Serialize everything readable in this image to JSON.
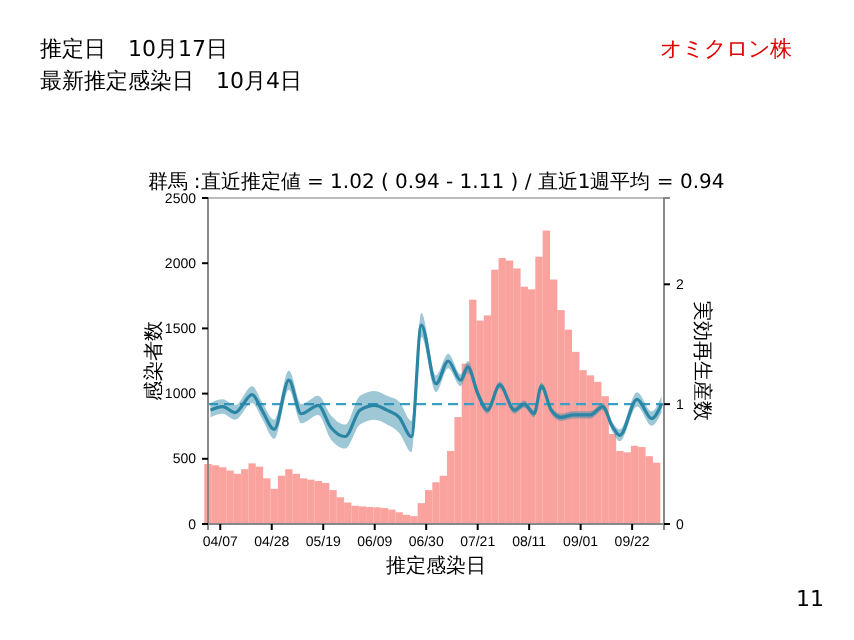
{
  "chart_data": {
    "type": "bar",
    "title": "群馬 :直近推定値 = 1.02 ( 0.94 - 1.11 ) / 直近1週平均 = 0.94",
    "xlabel": "推定感染日",
    "ylabel": "感染者数",
    "y2label": "実効再生産数",
    "annotations": [
      "推定日　10月17日",
      "最新推定感染日　10月4日",
      "オミクロン株",
      "11"
    ],
    "xlim": [
      "--04-02",
      "--10-05"
    ],
    "xticks": [
      {
        "value": "--04-07",
        "label": "04/07"
      },
      {
        "value": "--04-28",
        "label": "04/28"
      },
      {
        "value": "--05-19",
        "label": "05/19"
      },
      {
        "value": "--06-09",
        "label": "06/09"
      },
      {
        "value": "--06-30",
        "label": "06/30"
      },
      {
        "value": "--07-21",
        "label": "07/21"
      },
      {
        "value": "--08-11",
        "label": "08/11"
      },
      {
        "value": "--09-01",
        "label": "09/01"
      },
      {
        "value": "--09-22",
        "label": "09/22"
      }
    ],
    "ylim": [
      0,
      2500
    ],
    "yticks": [
      0,
      500,
      1000,
      1500,
      2000,
      2500
    ],
    "y2lim": [
      0,
      2.72
    ],
    "y2ticks": [
      0,
      1,
      2
    ],
    "series": [
      {
        "color": "#f9938d",
        "x": [
          "--04-02",
          "--04-05",
          "--04-08",
          "--04-11",
          "--04-14",
          "--04-17",
          "--04-20",
          "--04-23",
          "--04-26",
          "--04-29",
          "--05-02",
          "--05-05",
          "--05-08",
          "--05-11",
          "--05-14",
          "--05-17",
          "--05-20",
          "--05-23",
          "--05-26",
          "--05-29",
          "--06-01",
          "--06-04",
          "--06-07",
          "--06-10",
          "--06-13",
          "--06-16",
          "--06-19",
          "--06-22",
          "--06-25",
          "--06-28",
          "--07-01",
          "--07-04",
          "--07-07",
          "--07-10",
          "--07-13",
          "--07-16",
          "--07-19",
          "--07-22",
          "--07-25",
          "--07-28",
          "--07-31",
          "--08-03",
          "--08-06",
          "--08-09",
          "--08-12",
          "--08-15",
          "--08-18",
          "--08-21",
          "--08-24",
          "--08-27",
          "--08-30",
          "--09-02",
          "--09-05",
          "--09-08",
          "--09-11",
          "--09-14",
          "--09-17",
          "--09-20",
          "--09-23",
          "--09-26",
          "--09-29",
          "--10-02"
        ],
        "values": [
          460,
          450,
          435,
          410,
          385,
          420,
          465,
          440,
          350,
          270,
          370,
          420,
          385,
          350,
          340,
          330,
          315,
          260,
          205,
          165,
          140,
          135,
          130,
          128,
          122,
          110,
          90,
          70,
          60,
          160,
          260,
          320,
          370,
          560,
          820,
          1230,
          1720,
          1560,
          1600,
          1950,
          2040,
          2020,
          1960,
          1820,
          1800,
          2050,
          2250,
          1875,
          1640,
          1490,
          1320,
          1180,
          1140,
          1090,
          980,
          690,
          560,
          550,
          600,
          590,
          520,
          470
        ]
      },
      {
        "type": "line",
        "axis": "y2",
        "color": "#2b86a6",
        "x": [
          "--04-03",
          "--04-08",
          "--04-13",
          "--04-20",
          "--04-24",
          "--04-29",
          "--05-05",
          "--05-10",
          "--05-17",
          "--05-22",
          "--05-28",
          "--06-03",
          "--06-09",
          "--06-14",
          "--06-19",
          "--06-24",
          "--06-28",
          "--07-04",
          "--07-09",
          "--07-14",
          "--07-17",
          "--07-21",
          "--07-25",
          "--07-30",
          "--08-05",
          "--08-09",
          "--08-13",
          "--08-16",
          "--08-20",
          "--08-24",
          "--08-29",
          "--09-05",
          "--09-10",
          "--09-14",
          "--09-17",
          "--09-24",
          "--09-30",
          "--10-04"
        ],
        "values": [
          0.95,
          0.98,
          0.93,
          1.08,
          0.95,
          0.79,
          1.2,
          0.92,
          0.99,
          0.81,
          0.73,
          0.95,
          0.99,
          0.95,
          0.89,
          0.73,
          1.66,
          1.17,
          1.36,
          1.2,
          1.31,
          1.09,
          0.95,
          1.16,
          0.95,
          1.0,
          0.92,
          1.15,
          0.95,
          0.89,
          0.91,
          0.91,
          0.98,
          0.81,
          0.74,
          1.04,
          0.88,
          1.0
        ],
        "lower": [
          0.89,
          0.92,
          0.87,
          1.01,
          0.88,
          0.71,
          1.12,
          0.84,
          0.91,
          0.71,
          0.63,
          0.83,
          0.87,
          0.83,
          0.76,
          0.6,
          1.56,
          1.1,
          1.3,
          1.15,
          1.26,
          1.05,
          0.92,
          1.13,
          0.92,
          0.97,
          0.89,
          1.12,
          0.92,
          0.86,
          0.88,
          0.88,
          0.95,
          0.77,
          0.69,
          0.98,
          0.82,
          0.93
        ],
        "upper": [
          1.01,
          1.04,
          0.99,
          1.15,
          1.02,
          0.87,
          1.28,
          1.0,
          1.07,
          0.91,
          0.83,
          1.07,
          1.11,
          1.07,
          1.02,
          0.86,
          1.76,
          1.24,
          1.42,
          1.25,
          1.36,
          1.13,
          0.98,
          1.19,
          0.98,
          1.03,
          0.95,
          1.18,
          0.98,
          0.92,
          0.94,
          0.94,
          1.01,
          0.85,
          0.79,
          1.1,
          0.94,
          1.07
        ]
      }
    ],
    "ref_lines": [
      {
        "axis": "y2",
        "value": 1,
        "color": "#3a9fc6",
        "line_style": "dashed"
      }
    ]
  }
}
